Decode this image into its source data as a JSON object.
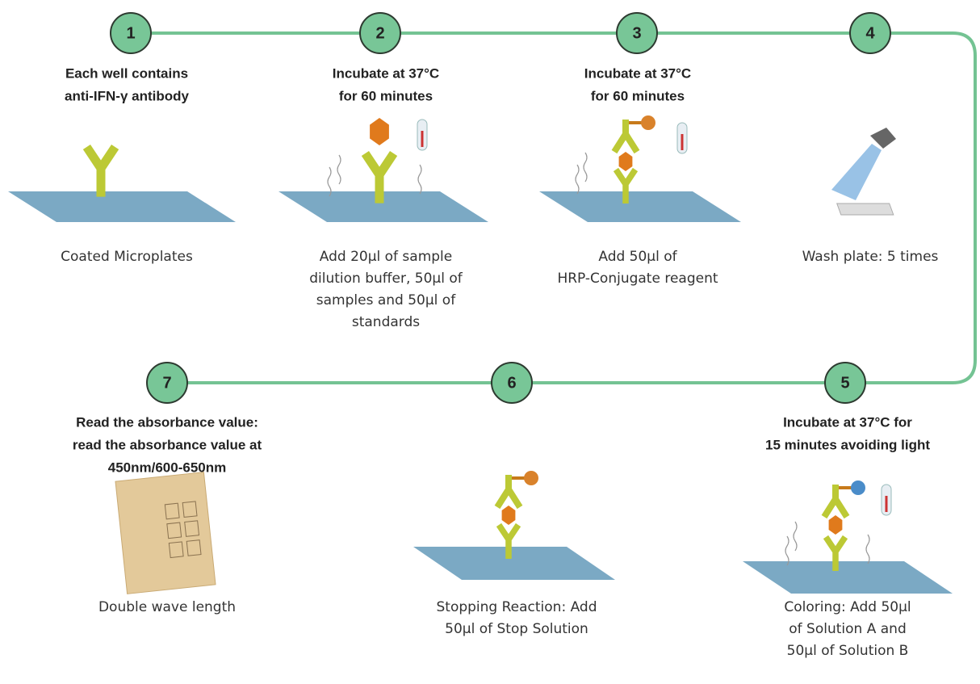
{
  "steps": [
    {
      "number": "1",
      "title": [
        "Each well contains",
        "anti-IFN-γ antibody"
      ],
      "caption": [
        "Coated Microplates"
      ]
    },
    {
      "number": "2",
      "title": [
        "Incubate at 37°C",
        "for 60 minutes"
      ],
      "caption": [
        "Add 20µl of sample",
        "dilution buffer, 50µl of",
        "samples and 50µl of",
        "standards"
      ]
    },
    {
      "number": "3",
      "title": [
        "Incubate at 37°C",
        "for 60 minutes"
      ],
      "caption": [
        "Add 50µl of",
        "HRP-Conjugate reagent"
      ]
    },
    {
      "number": "4",
      "title": [],
      "caption": [
        "Wash plate: 5 times"
      ]
    },
    {
      "number": "5",
      "title": [
        "Incubate at 37°C for",
        "15 minutes avoiding light"
      ],
      "caption": [
        "Coloring: Add 50µl",
        "of Solution A and",
        "50µl of Solution B"
      ]
    },
    {
      "number": "6",
      "title": [],
      "caption": [
        "Stopping Reaction: Add",
        "50µl of Stop Solution"
      ]
    },
    {
      "number": "7",
      "title": [
        "Read the absorbance value:",
        "read the absorbance value at",
        "450nm/600-650nm"
      ],
      "caption": [
        "Double wave length"
      ]
    }
  ]
}
